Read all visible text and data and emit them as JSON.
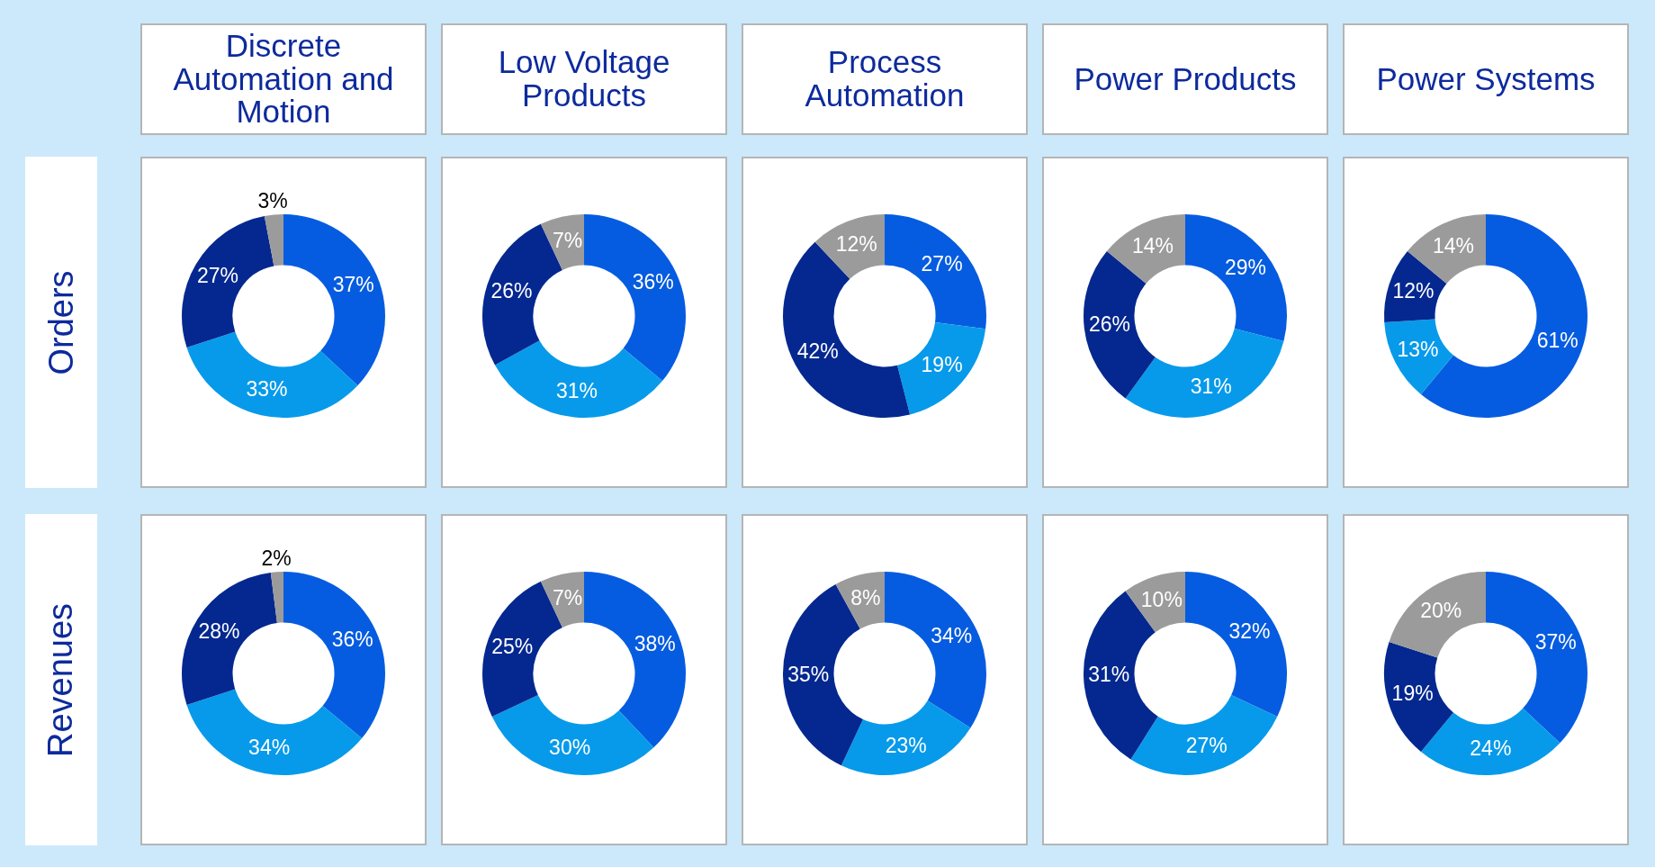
{
  "chart_data": [
    {
      "type": "donut",
      "title": "Discrete Automation and Motion",
      "ylabel": "Orders",
      "categories": [
        null,
        null,
        null,
        null
      ],
      "values": [
        37,
        33,
        27,
        3
      ],
      "value_labels": [
        "37%",
        "33%",
        "27%",
        "3%"
      ],
      "colors": [
        "#065ce0",
        "#079aea",
        "#04288f",
        "#9b9b9b"
      ]
    },
    {
      "type": "donut",
      "title": "Low Voltage Products",
      "categories": [
        null,
        null,
        null,
        null
      ],
      "values": [
        36,
        31,
        26,
        7
      ],
      "value_labels": [
        "36%",
        "31%",
        "26%",
        "7%"
      ],
      "colors": [
        "#065ce0",
        "#079aea",
        "#04288f",
        "#9b9b9b"
      ]
    },
    {
      "type": "donut",
      "title": "Process Automation",
      "categories": [
        null,
        null,
        null,
        null
      ],
      "values": [
        27,
        19,
        42,
        12
      ],
      "value_labels": [
        "27%",
        "19%",
        "42%",
        "12%"
      ],
      "colors": [
        "#065ce0",
        "#079aea",
        "#04288f",
        "#9b9b9b"
      ]
    },
    {
      "type": "donut",
      "title": "Power Products",
      "categories": [
        null,
        null,
        null,
        null
      ],
      "values": [
        29,
        31,
        26,
        14
      ],
      "value_labels": [
        "29%",
        "31%",
        "26%",
        "14%"
      ],
      "colors": [
        "#065ce0",
        "#079aea",
        "#04288f",
        "#9b9b9b"
      ]
    },
    {
      "type": "donut",
      "title": "Power Systems",
      "categories": [
        null,
        null,
        null,
        null
      ],
      "values": [
        61,
        13,
        12,
        14
      ],
      "value_labels": [
        "61%",
        "13%",
        "12%",
        "14%"
      ],
      "colors": [
        "#065ce0",
        "#079aea",
        "#04288f",
        "#9b9b9b"
      ]
    },
    {
      "type": "donut",
      "ylabel": "Revenues",
      "categories": [
        null,
        null,
        null,
        null
      ],
      "values": [
        36,
        34,
        28,
        2
      ],
      "value_labels": [
        "36%",
        "34%",
        "28%",
        "2%"
      ],
      "colors": [
        "#065ce0",
        "#079aea",
        "#04288f",
        "#9b9b9b"
      ]
    },
    {
      "type": "donut",
      "categories": [
        null,
        null,
        null,
        null
      ],
      "values": [
        38,
        30,
        25,
        7
      ],
      "value_labels": [
        "38%",
        "30%",
        "25%",
        "7%"
      ],
      "colors": [
        "#065ce0",
        "#079aea",
        "#04288f",
        "#9b9b9b"
      ]
    },
    {
      "type": "donut",
      "categories": [
        null,
        null,
        null,
        null
      ],
      "values": [
        34,
        23,
        35,
        8
      ],
      "value_labels": [
        "34%",
        "23%",
        "35%",
        "8%"
      ],
      "colors": [
        "#065ce0",
        "#079aea",
        "#04288f",
        "#9b9b9b"
      ]
    },
    {
      "type": "donut",
      "categories": [
        null,
        null,
        null,
        null
      ],
      "values": [
        32,
        27,
        31,
        10
      ],
      "value_labels": [
        "32%",
        "27%",
        "31%",
        "10%"
      ],
      "colors": [
        "#065ce0",
        "#079aea",
        "#04288f",
        "#9b9b9b"
      ]
    },
    {
      "type": "donut",
      "categories": [
        null,
        null,
        null,
        null
      ],
      "values": [
        37,
        24,
        19,
        20
      ],
      "value_labels": [
        "37%",
        "24%",
        "19%",
        "20%"
      ],
      "colors": [
        "#065ce0",
        "#079aea",
        "#04288f",
        "#9b9b9b"
      ]
    }
  ]
}
